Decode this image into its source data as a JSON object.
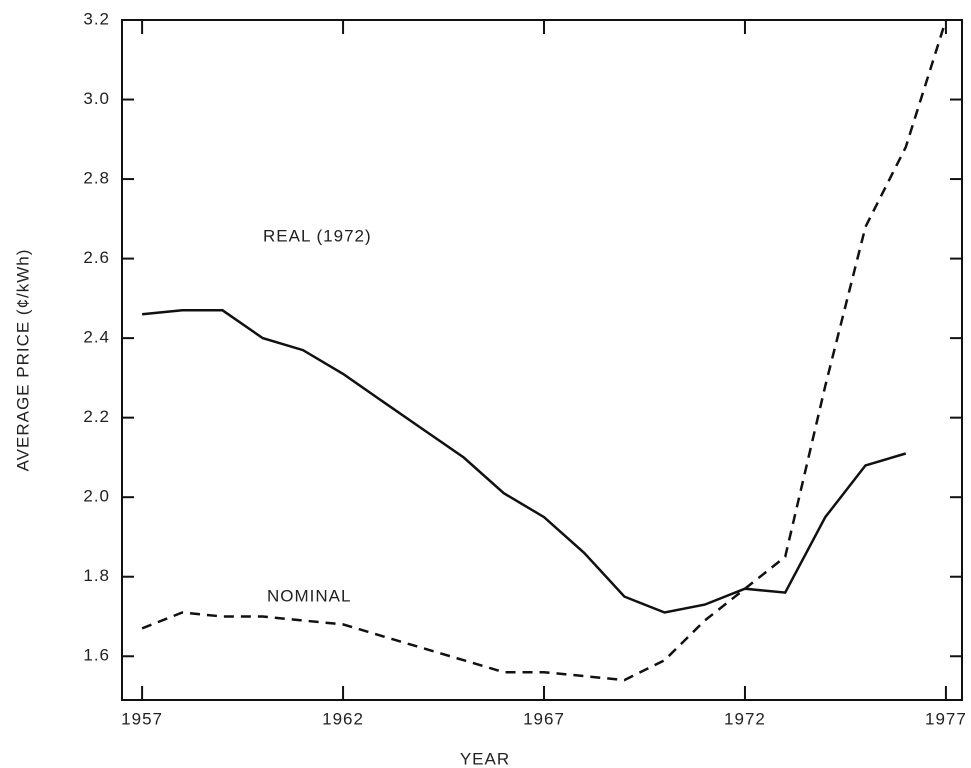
{
  "chart_data": {
    "type": "line",
    "xlabel": "YEAR",
    "ylabel": "AVERAGE PRICE (¢/kWh)",
    "x": [
      1957,
      1958,
      1959,
      1960,
      1961,
      1962,
      1963,
      1964,
      1965,
      1966,
      1967,
      1968,
      1969,
      1970,
      1971,
      1972,
      1973,
      1974,
      1975,
      1976,
      1977
    ],
    "series": [
      {
        "name": "REAL (1972)",
        "color": "#111111",
        "dash": "solid",
        "values": [
          2.46,
          2.47,
          2.47,
          2.4,
          2.37,
          2.31,
          2.24,
          2.17,
          2.1,
          2.01,
          1.95,
          1.86,
          1.75,
          1.71,
          1.73,
          1.77,
          1.76,
          1.95,
          2.08,
          2.11,
          null
        ]
      },
      {
        "name": "NOMINAL",
        "color": "#111111",
        "dash": "dashed",
        "values": [
          1.67,
          1.71,
          1.7,
          1.7,
          1.69,
          1.68,
          1.65,
          1.62,
          1.59,
          1.56,
          1.56,
          1.55,
          1.54,
          1.59,
          1.69,
          1.77,
          1.85,
          2.28,
          2.68,
          2.88,
          3.2
        ]
      }
    ],
    "xlim": [
      1956.5,
      1977.4
    ],
    "xticks": [
      1957,
      1962,
      1967,
      1972,
      1977
    ],
    "ylim": [
      1.49,
      3.2
    ],
    "yticks": [
      {
        "value": 1.6,
        "label": "1.6"
      },
      {
        "value": 1.8,
        "label": "1.8"
      },
      {
        "value": 2.0,
        "label": "2.0"
      },
      {
        "value": 2.2,
        "label": "2.2"
      },
      {
        "value": 2.4,
        "label": "2.4"
      },
      {
        "value": 2.6,
        "label": "2.6"
      },
      {
        "value": 2.8,
        "label": "2.8"
      },
      {
        "value": 3.0,
        "label": "3.0"
      },
      {
        "value": 3.2,
        "label": "3.2"
      }
    ],
    "grid": false
  }
}
